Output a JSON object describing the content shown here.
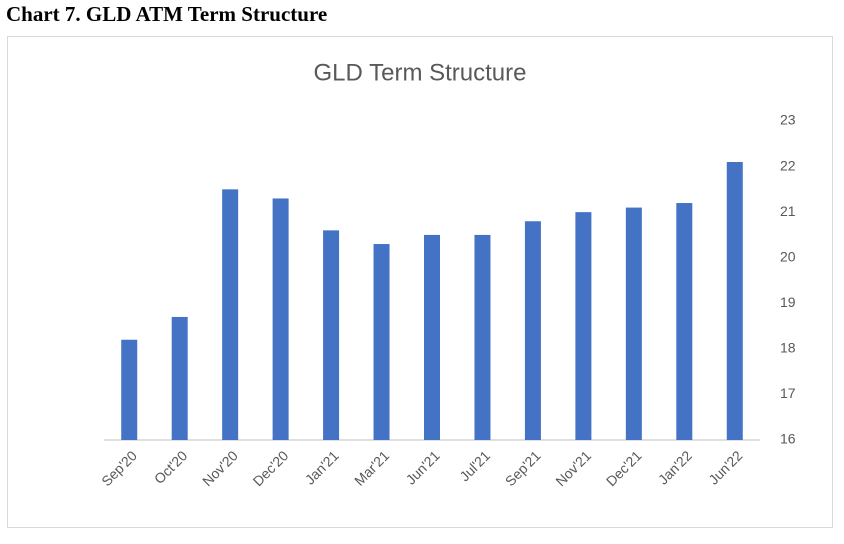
{
  "heading": "Chart 7.  GLD ATM Term Structure",
  "chart_data": {
    "type": "bar",
    "title": "GLD Term Structure",
    "categories": [
      "Sep'20",
      "Oct'20",
      "Nov'20",
      "Dec'20",
      "Jan'21",
      "Mar'21",
      "Jun'21",
      "Jul'21",
      "Sep'21",
      "Nov'21",
      "Dec'21",
      "Jan'22",
      "Jun'22"
    ],
    "values": [
      18.2,
      18.7,
      21.5,
      21.3,
      20.6,
      20.3,
      20.5,
      20.5,
      20.8,
      21.0,
      21.1,
      21.2,
      22.1
    ],
    "color": "#4472c4",
    "ylim": [
      16,
      23
    ],
    "yticks": [
      16,
      17,
      18,
      19,
      20,
      21,
      22,
      23
    ],
    "y_axis_side": "right",
    "grid": false
  }
}
